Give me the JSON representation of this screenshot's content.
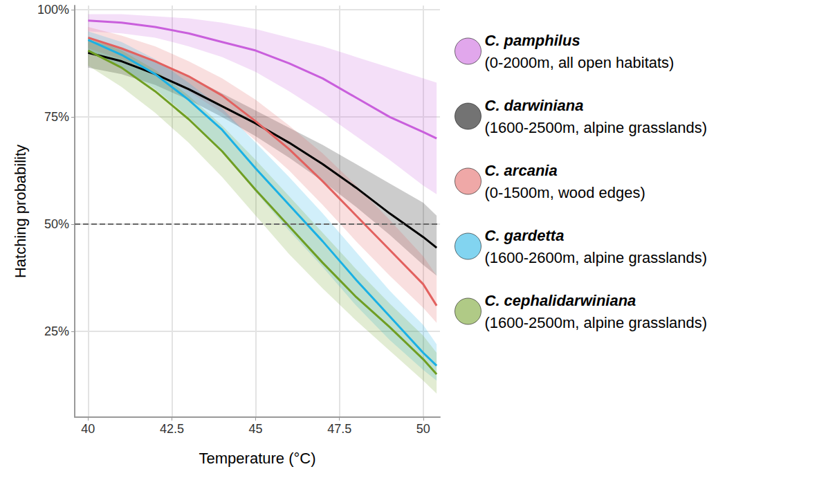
{
  "chart_data": {
    "type": "line",
    "x_label": "Temperature (°C)",
    "y_label": "Hatching probability",
    "x": [
      40,
      41,
      42,
      43,
      44,
      45,
      46,
      47,
      48,
      49,
      50,
      50.4
    ],
    "xlim": [
      39.6,
      50.5
    ],
    "xticks": [
      40,
      42.5,
      45,
      47.5,
      50
    ],
    "ylim": [
      5,
      101
    ],
    "yticks": [
      {
        "value": 25,
        "label": "25%"
      },
      {
        "value": 50,
        "label": "50%"
      },
      {
        "value": 75,
        "label": "75%"
      },
      {
        "value": 100,
        "label": "100%"
      }
    ],
    "hline": 50,
    "grid": true,
    "legend": "right",
    "series": [
      {
        "name": "C. pamphilus",
        "habitat": "(0-2000m, all open habitats)",
        "color": "#c95fdc",
        "values": [
          97.5,
          97,
          96,
          94.5,
          92.5,
          90.5,
          87.5,
          84,
          79.5,
          75,
          71.5,
          70
        ],
        "lower": [
          95,
          94.5,
          93.5,
          91.5,
          89,
          85.5,
          81,
          76,
          70.5,
          65,
          59,
          57
        ],
        "upper": [
          99,
          99,
          98.5,
          98,
          97,
          95.5,
          93.5,
          91.5,
          89,
          86.5,
          84,
          83
        ]
      },
      {
        "name": "C. darwiniana",
        "habitat": "(1600-2500m, alpine grasslands)",
        "color": "#000000",
        "values": [
          90,
          88,
          85,
          81.5,
          77.5,
          73.5,
          69,
          64,
          58.5,
          52.5,
          47,
          44.5
        ],
        "lower": [
          86.5,
          85,
          82.5,
          79,
          75,
          70.5,
          65.5,
          60,
          54,
          47.5,
          40.5,
          38
        ],
        "upper": [
          93,
          91,
          88,
          84.5,
          80.5,
          76.5,
          72.5,
          68.5,
          64,
          59.5,
          55,
          52
        ]
      },
      {
        "name": "C. arcania",
        "habitat": "(0-1500m, wood edges)",
        "color": "#e2615f",
        "values": [
          93.5,
          91,
          88,
          84.5,
          80,
          74,
          67.5,
          60,
          52,
          44,
          36,
          31
        ],
        "lower": [
          91,
          88.5,
          85,
          81,
          76,
          69.5,
          62.5,
          54.5,
          46,
          38,
          30.5,
          27
        ],
        "upper": [
          96,
          94,
          91.5,
          88,
          84,
          79,
          73,
          66.5,
          59,
          51,
          42.5,
          38
        ]
      },
      {
        "name": "C. gardetta",
        "habitat": "(1600-2600m, alpine grasslands)",
        "color": "#1bb0e4",
        "values": [
          93,
          89.5,
          85,
          79,
          72,
          63,
          54.5,
          46,
          37,
          28.5,
          20,
          17
        ],
        "lower": [
          90.5,
          86.5,
          81.5,
          75,
          67,
          57.5,
          48.5,
          40,
          31,
          23,
          16,
          13.5
        ],
        "upper": [
          95,
          92.5,
          88.5,
          83,
          77,
          69,
          61,
          52.5,
          43.5,
          34.5,
          26.5,
          22
        ]
      },
      {
        "name": "C. cephalidarwiniana",
        "habitat": "(1600-2500m, alpine grasslands)",
        "color": "#6f9e23",
        "values": [
          90.5,
          86.5,
          81,
          74.5,
          67,
          58,
          49.5,
          41,
          33,
          26,
          18.5,
          15
        ],
        "lower": [
          87,
          82,
          76,
          69,
          61,
          52,
          43,
          35,
          27.5,
          20.5,
          13.5,
          10.5
        ],
        "upper": [
          93.5,
          90.5,
          86,
          80,
          73,
          65,
          56.5,
          48,
          39.5,
          31.5,
          24,
          20
        ]
      }
    ]
  }
}
